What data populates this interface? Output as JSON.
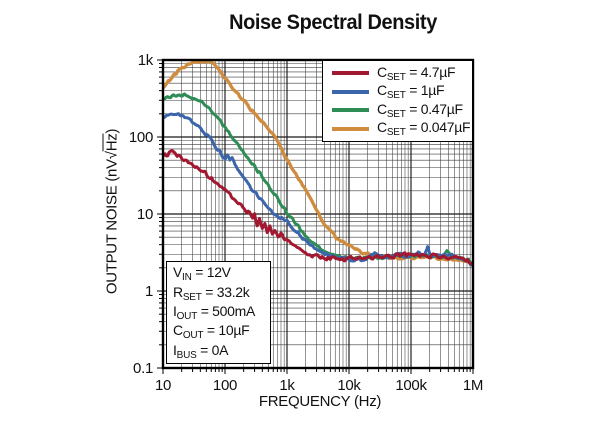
{
  "chart_data": {
    "type": "line",
    "title": "Noise Spectral Density",
    "xlabel": "FREQUENCY (Hz)",
    "ylabel": "OUTPUT NOISE (nV√Hz)",
    "ylabel_parts": {
      "prefix": "OUTPUT NOISE (nV",
      "sqrt": "√",
      "radicand": "Hz",
      "suffix": ")"
    },
    "xscale": "log",
    "yscale": "log",
    "xlim": [
      10,
      1000000
    ],
    "ylim": [
      0.1,
      1000
    ],
    "grid": {
      "major": true,
      "minor": true,
      "color": "#1a1a1a"
    },
    "legend_position": "top-right-inside",
    "x_ticks": [
      {
        "value": 10,
        "label": "10"
      },
      {
        "value": 100,
        "label": "100"
      },
      {
        "value": 1000,
        "label": "1k"
      },
      {
        "value": 10000,
        "label": "10k"
      },
      {
        "value": 100000,
        "label": "100k"
      },
      {
        "value": 1000000,
        "label": "1M"
      }
    ],
    "y_ticks": [
      {
        "value": 1000,
        "label": "1k"
      },
      {
        "value": 100,
        "label": "100"
      },
      {
        "value": 10,
        "label": "10"
      },
      {
        "value": 1,
        "label": "1"
      },
      {
        "value": 0.1,
        "label": "0.1"
      }
    ],
    "series": [
      {
        "name": "CSET = 4.7µF",
        "sym": "C",
        "sub": "SET",
        "rest": " = 4.7µF",
        "color": "#A11830",
        "points": [
          [
            10,
            55
          ],
          [
            12,
            60
          ],
          [
            14,
            64
          ],
          [
            16,
            62
          ],
          [
            18,
            57
          ],
          [
            20,
            54
          ],
          [
            25,
            49
          ],
          [
            32,
            43
          ],
          [
            40,
            37.5
          ],
          [
            50,
            33
          ],
          [
            63,
            28
          ],
          [
            80,
            24
          ],
          [
            100,
            20.5
          ],
          [
            125,
            17
          ],
          [
            160,
            14
          ],
          [
            200,
            12
          ],
          [
            250,
            10
          ],
          [
            280,
            8.4
          ],
          [
            300,
            9.6
          ],
          [
            330,
            7.4
          ],
          [
            360,
            8.6
          ],
          [
            400,
            6.6
          ],
          [
            440,
            7.6
          ],
          [
            480,
            5.9
          ],
          [
            530,
            6.8
          ],
          [
            580,
            5.4
          ],
          [
            640,
            6
          ],
          [
            720,
            5.1
          ],
          [
            800,
            5.4
          ],
          [
            900,
            4.7
          ],
          [
            1000,
            4.9
          ],
          [
            1150,
            4.1
          ],
          [
            1300,
            3.8
          ],
          [
            1600,
            3.5
          ],
          [
            2000,
            3.15
          ],
          [
            2500,
            2.95
          ],
          [
            3200,
            2.8
          ],
          [
            4000,
            2.72
          ],
          [
            5000,
            2.62
          ],
          [
            8000,
            2.6
          ],
          [
            12000,
            2.65
          ],
          [
            20000,
            2.7
          ],
          [
            32000,
            2.75
          ],
          [
            50000,
            2.8
          ],
          [
            80000,
            2.95
          ],
          [
            100000,
            2.9
          ],
          [
            130000,
            2.95
          ],
          [
            160000,
            2.9
          ],
          [
            200000,
            2.85
          ],
          [
            250000,
            2.9
          ],
          [
            320000,
            2.8
          ],
          [
            400000,
            2.75
          ],
          [
            500000,
            2.7
          ],
          [
            640000,
            2.65
          ],
          [
            800000,
            2.55
          ],
          [
            1000000,
            2.3
          ]
        ]
      },
      {
        "name": "CSET = 1µF",
        "sym": "C",
        "sub": "SET",
        "rest": " = 1µF",
        "color": "#3C66AB",
        "points": [
          [
            10,
            176
          ],
          [
            13,
            190
          ],
          [
            16,
            196
          ],
          [
            20,
            188
          ],
          [
            25,
            170
          ],
          [
            32,
            149
          ],
          [
            40,
            128
          ],
          [
            50,
            107
          ],
          [
            63,
            86
          ],
          [
            80,
            66
          ],
          [
            100,
            52
          ],
          [
            110,
            60
          ],
          [
            120,
            52
          ],
          [
            130,
            57
          ],
          [
            145,
            44
          ],
          [
            160,
            37
          ],
          [
            200,
            29.5
          ],
          [
            250,
            23
          ],
          [
            320,
            18
          ],
          [
            400,
            14.5
          ],
          [
            500,
            11.8
          ],
          [
            640,
            9.9
          ],
          [
            800,
            8.8
          ],
          [
            1000,
            8
          ],
          [
            1250,
            6.6
          ],
          [
            1600,
            5.4
          ],
          [
            2000,
            4.5
          ],
          [
            2500,
            3.8
          ],
          [
            3200,
            3.3
          ],
          [
            4000,
            3
          ],
          [
            5000,
            2.8
          ],
          [
            6300,
            2.65
          ],
          [
            8000,
            2.6
          ],
          [
            10000,
            2.55
          ],
          [
            13000,
            2.6
          ],
          [
            16000,
            2.55
          ],
          [
            20000,
            2.65
          ],
          [
            26000,
            3.1
          ],
          [
            32000,
            2.7
          ],
          [
            40000,
            2.85
          ],
          [
            50000,
            2.7
          ],
          [
            63000,
            3.1
          ],
          [
            80000,
            2.8
          ],
          [
            100000,
            2.95
          ],
          [
            130000,
            3.3
          ],
          [
            160000,
            2.85
          ],
          [
            185000,
            3.8
          ],
          [
            210000,
            2.9
          ],
          [
            250000,
            2.85
          ],
          [
            320000,
            2.8
          ],
          [
            400000,
            3
          ],
          [
            500000,
            2.8
          ],
          [
            640000,
            2.7
          ],
          [
            800000,
            2.5
          ],
          [
            1000000,
            2.1
          ]
        ]
      },
      {
        "name": "CSET = 0.47µF",
        "sym": "C",
        "sub": "SET",
        "rest": " = 0.47µF",
        "color": "#2E8C55",
        "points": [
          [
            10,
            318
          ],
          [
            13,
            333
          ],
          [
            16,
            344
          ],
          [
            20,
            350
          ],
          [
            25,
            342
          ],
          [
            32,
            322
          ],
          [
            40,
            292
          ],
          [
            50,
            255
          ],
          [
            63,
            212
          ],
          [
            80,
            170
          ],
          [
            100,
            134
          ],
          [
            125,
            106
          ],
          [
            160,
            84
          ],
          [
            200,
            65
          ],
          [
            250,
            51
          ],
          [
            320,
            39
          ],
          [
            400,
            30
          ],
          [
            500,
            23.5
          ],
          [
            640,
            17.8
          ],
          [
            800,
            13.6
          ],
          [
            1000,
            10.4
          ],
          [
            1250,
            8.2
          ],
          [
            1600,
            6.5
          ],
          [
            2000,
            5.3
          ],
          [
            2500,
            4.4
          ],
          [
            3200,
            3.7
          ],
          [
            4000,
            3.3
          ],
          [
            5000,
            3.05
          ],
          [
            6300,
            2.9
          ],
          [
            8000,
            2.8
          ],
          [
            10000,
            2.7
          ],
          [
            16000,
            2.6
          ],
          [
            25000,
            2.75
          ],
          [
            40000,
            2.7
          ],
          [
            63000,
            2.85
          ],
          [
            100000,
            2.8
          ],
          [
            160000,
            2.85
          ],
          [
            250000,
            2.9
          ],
          [
            320000,
            2.8
          ],
          [
            380000,
            3.4
          ],
          [
            450000,
            2.8
          ],
          [
            550000,
            2.75
          ],
          [
            700000,
            2.6
          ],
          [
            850000,
            2.5
          ],
          [
            1000000,
            2.2
          ]
        ]
      },
      {
        "name": "CSET = 0.047µF",
        "sym": "C",
        "sub": "SET",
        "rest": " = 0.047µF",
        "color": "#D08C3E",
        "points": [
          [
            10,
            420
          ],
          [
            12,
            520
          ],
          [
            14,
            600
          ],
          [
            16,
            670
          ],
          [
            20,
            780
          ],
          [
            25,
            860
          ],
          [
            30,
            915
          ],
          [
            36,
            945
          ],
          [
            45,
            955
          ],
          [
            55,
            930
          ],
          [
            65,
            880
          ],
          [
            80,
            740
          ],
          [
            100,
            580
          ],
          [
            125,
            450
          ],
          [
            160,
            360
          ],
          [
            200,
            300
          ],
          [
            250,
            240
          ],
          [
            320,
            190
          ],
          [
            400,
            155
          ],
          [
            500,
            125
          ],
          [
            640,
            100
          ],
          [
            800,
            72
          ],
          [
            1000,
            51
          ],
          [
            1250,
            38
          ],
          [
            1600,
            27
          ],
          [
            2000,
            20
          ],
          [
            2500,
            14.5
          ],
          [
            3200,
            10
          ],
          [
            4000,
            7.6
          ],
          [
            5000,
            6
          ],
          [
            6300,
            4.9
          ],
          [
            8000,
            4.3
          ],
          [
            10000,
            4
          ],
          [
            13000,
            3.5
          ],
          [
            16000,
            3.2
          ],
          [
            20000,
            3
          ],
          [
            25000,
            2.9
          ],
          [
            32000,
            2.8
          ],
          [
            40000,
            2.75
          ],
          [
            50000,
            2.7
          ],
          [
            63000,
            2.7
          ],
          [
            80000,
            2.7
          ],
          [
            100000,
            2.7
          ],
          [
            160000,
            2.7
          ],
          [
            250000,
            2.7
          ],
          [
            320000,
            2.65
          ],
          [
            500000,
            2.6
          ],
          [
            640000,
            2.55
          ],
          [
            800000,
            2.5
          ],
          [
            1000000,
            2.3
          ]
        ]
      }
    ],
    "conditions": [
      {
        "sym": "V",
        "sub": "IN",
        "rest": " = 12V"
      },
      {
        "sym": "R",
        "sub": "SET",
        "rest": " = 33.2k"
      },
      {
        "sym": "I",
        "sub": "OUT",
        "rest": " = 500mA"
      },
      {
        "sym": "C",
        "sub": "OUT",
        "rest": " = 10µF"
      },
      {
        "sym": "I",
        "sub": "BUS",
        "rest": " = 0A"
      }
    ]
  }
}
